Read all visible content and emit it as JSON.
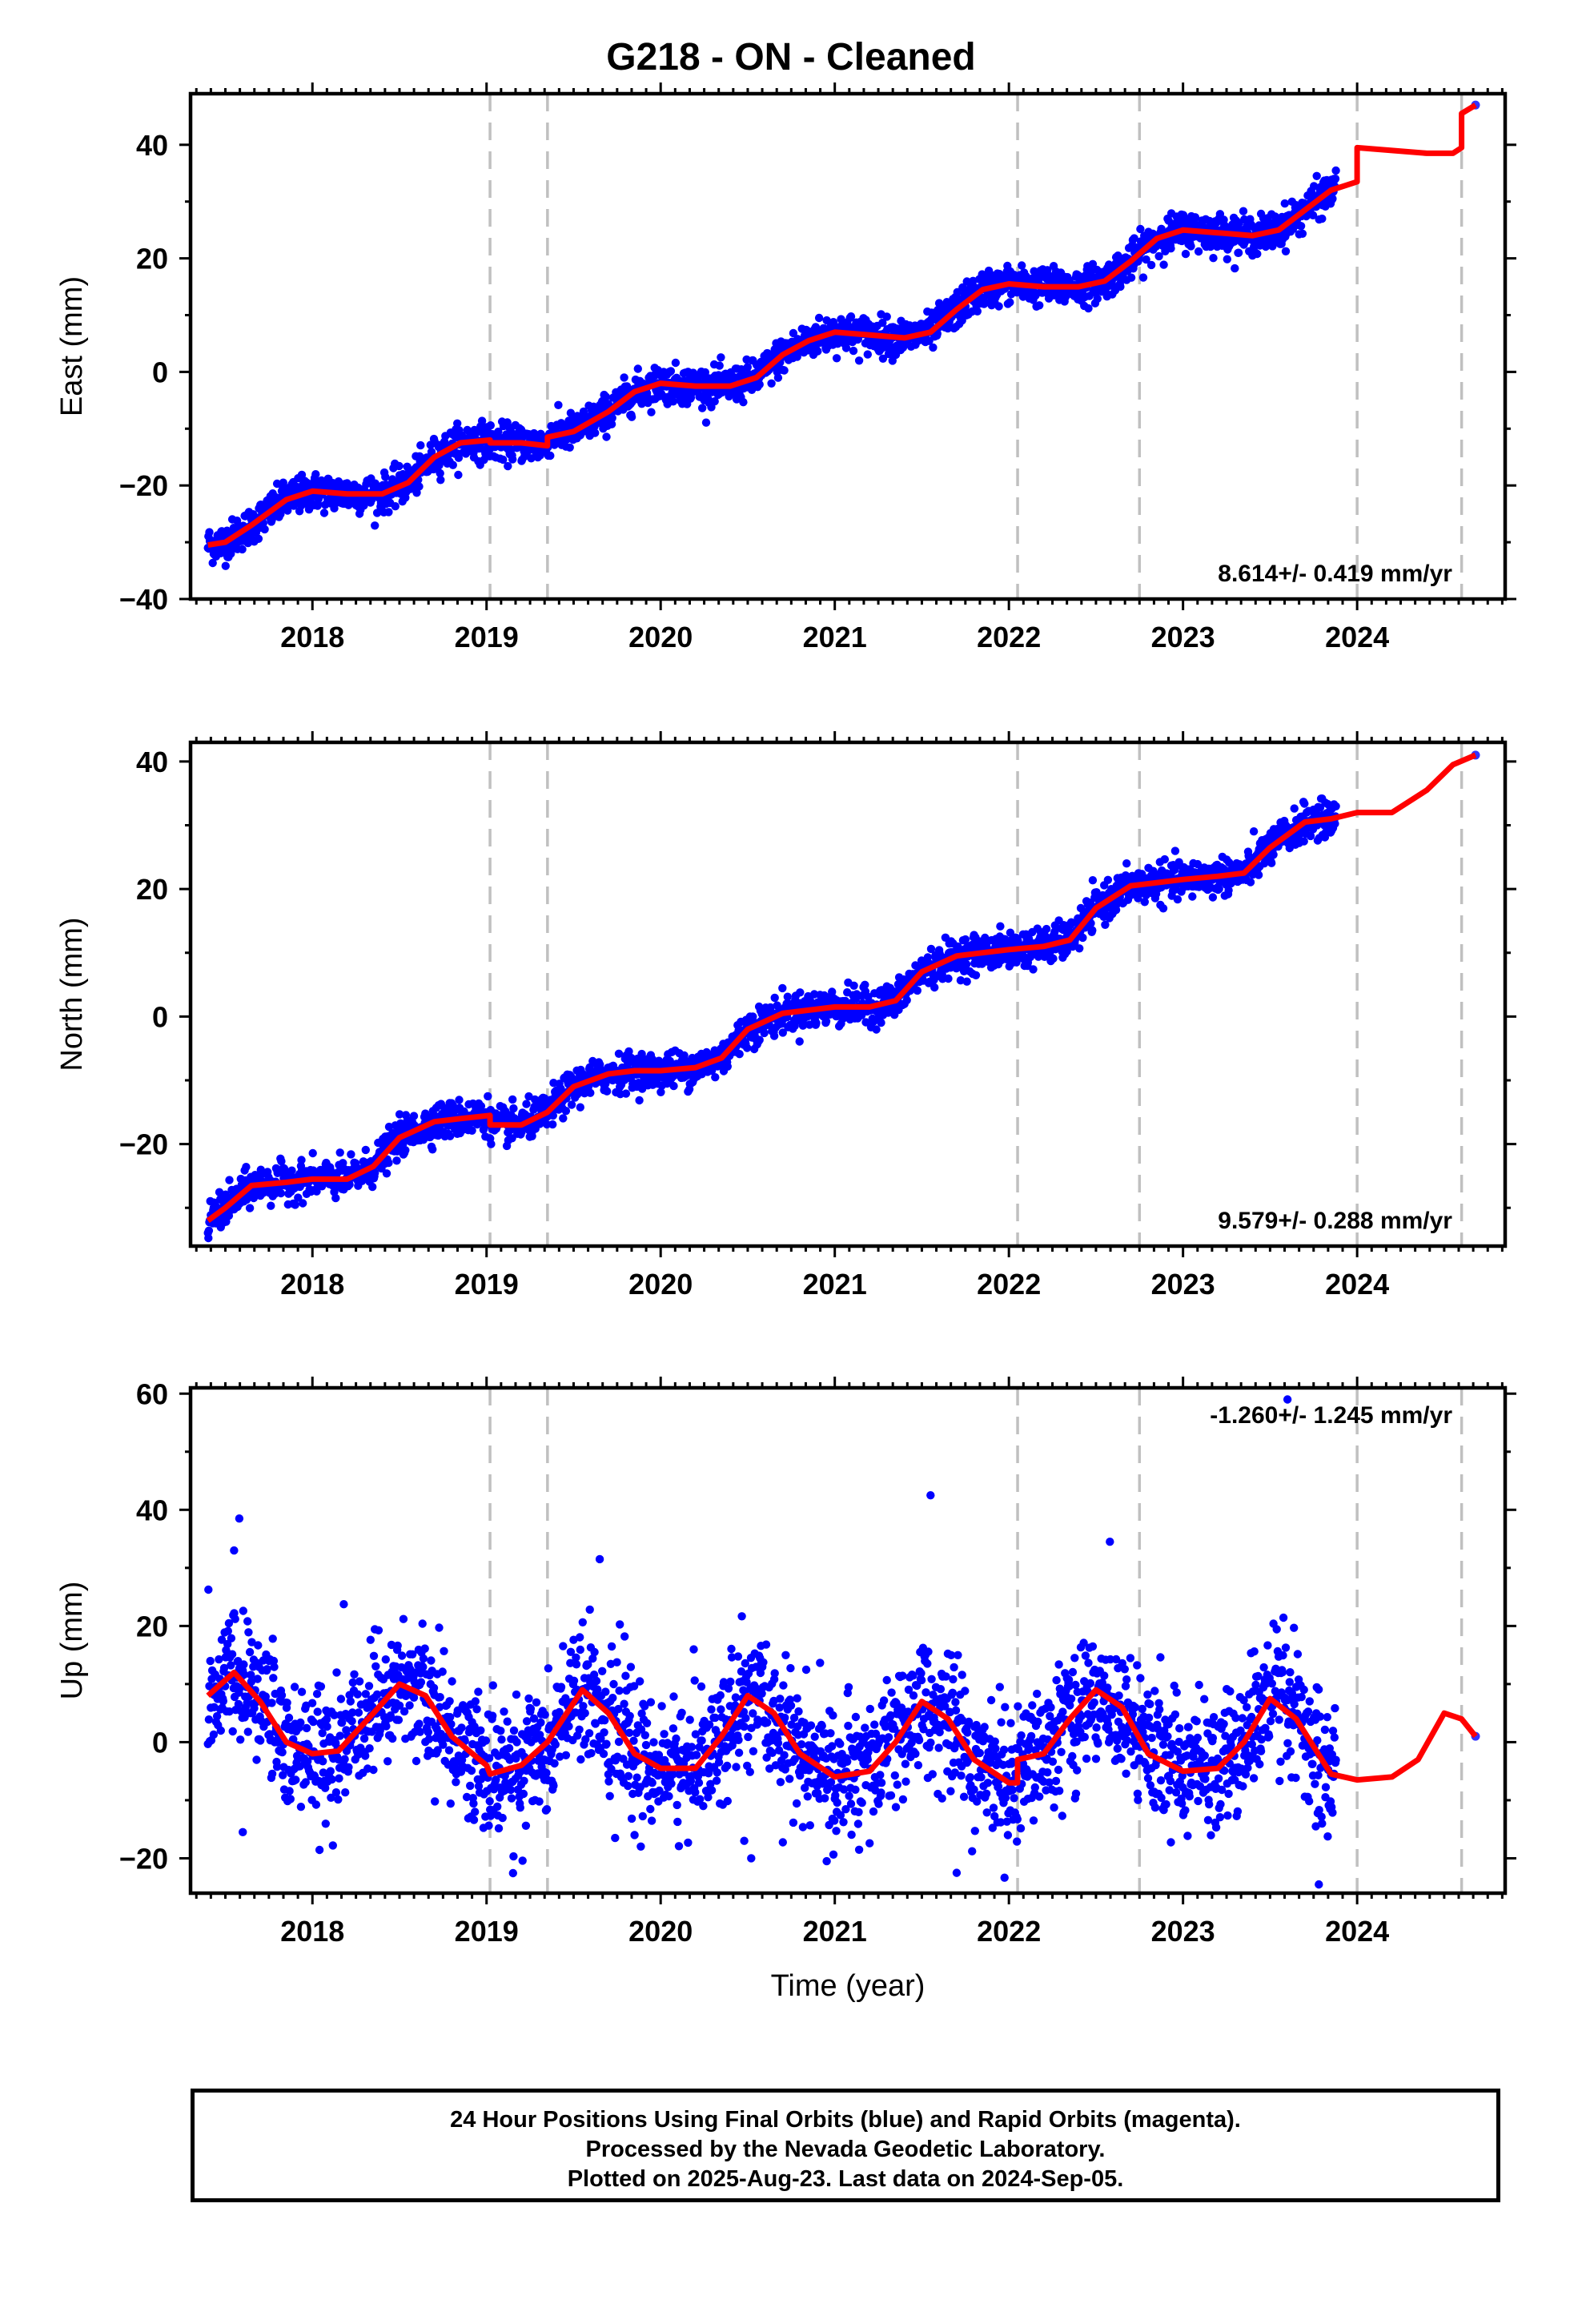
{
  "title": "G218  - ON - Cleaned",
  "footer": {
    "line1": "24 Hour Positions Using Final Orbits (blue) and Rapid Orbits (magenta).",
    "line2": "Processed by the Nevada Geodetic Laboratory.",
    "line3": "Plotted on 2025-Aug-23. Last data on 2024-Sep-05."
  },
  "colors": {
    "data": "#0000ff",
    "model": "#ff0000",
    "grid": "#c0c0c0"
  },
  "chart_data": [
    {
      "type": "scatter",
      "panel": "east",
      "ylabel": "East (mm)",
      "xlabel": "",
      "xlim": [
        2017.3,
        2024.85
      ],
      "ylim": [
        -40,
        49
      ],
      "x_ticks": [
        2018,
        2019,
        2020,
        2021,
        2022,
        2023,
        2024
      ],
      "y_ticks": [
        -40,
        -20,
        0,
        20,
        40
      ],
      "rate_label": "8.614+/- 0.419 mm/yr",
      "rate_label_position": "bottom-right",
      "vertical_lines": [
        2019.02,
        2019.35,
        2022.05,
        2022.75,
        2024.0,
        2024.6
      ],
      "last_point": [
        2024.68,
        47
      ],
      "series": [
        {
          "name": "model",
          "x": [
            2017.4,
            2017.5,
            2017.65,
            2017.85,
            2018.0,
            2018.2,
            2018.4,
            2018.55,
            2018.7,
            2018.85,
            2019.02,
            2019.02,
            2019.2,
            2019.35,
            2019.35,
            2019.5,
            2019.7,
            2019.85,
            2020.0,
            2020.2,
            2020.4,
            2020.55,
            2020.7,
            2020.85,
            2021.0,
            2021.2,
            2021.4,
            2021.55,
            2021.7,
            2021.85,
            2022.0,
            2022.2,
            2022.4,
            2022.55,
            2022.7,
            2022.85,
            2023.0,
            2023.2,
            2023.4,
            2023.55,
            2023.7,
            2023.85,
            2024.0,
            2024.0,
            2024.2,
            2024.4,
            2024.55,
            2024.6,
            2024.6,
            2024.68
          ],
          "y": [
            -30.5,
            -30,
            -27,
            -22.5,
            -21,
            -21.5,
            -21.5,
            -19.5,
            -15,
            -12.5,
            -12,
            -12.5,
            -12.5,
            -13,
            -11.5,
            -10.5,
            -7,
            -3.5,
            -2,
            -2.5,
            -2.5,
            -1,
            3,
            5.5,
            7,
            6.5,
            6,
            7,
            11,
            14.5,
            15.5,
            15,
            15,
            16,
            19.5,
            23.5,
            25,
            24.5,
            24,
            25,
            28.5,
            32,
            33.5,
            39.5,
            39,
            38.5,
            38.5,
            39.5,
            45.5,
            47
          ]
        }
      ]
    },
    {
      "type": "scatter",
      "panel": "north",
      "ylabel": "North (mm)",
      "xlabel": "",
      "xlim": [
        2017.3,
        2024.85
      ],
      "ylim": [
        -36,
        43
      ],
      "x_ticks": [
        2018,
        2019,
        2020,
        2021,
        2022,
        2023,
        2024
      ],
      "y_ticks": [
        -20,
        0,
        20,
        40
      ],
      "rate_label": "9.579+/- 0.288 mm/yr",
      "rate_label_position": "bottom-right",
      "vertical_lines": [
        2019.02,
        2019.35,
        2022.05,
        2022.75,
        2024.0,
        2024.6
      ],
      "last_point": [
        2024.68,
        41
      ],
      "series": [
        {
          "name": "model",
          "x": [
            2017.4,
            2017.5,
            2017.65,
            2017.85,
            2018.0,
            2018.2,
            2018.35,
            2018.5,
            2018.7,
            2018.85,
            2019.02,
            2019.02,
            2019.2,
            2019.35,
            2019.5,
            2019.7,
            2019.85,
            2020.0,
            2020.2,
            2020.35,
            2020.5,
            2020.7,
            2020.85,
            2021.0,
            2021.2,
            2021.35,
            2021.5,
            2021.7,
            2021.85,
            2022.0,
            2022.2,
            2022.35,
            2022.5,
            2022.7,
            2022.85,
            2023.0,
            2023.2,
            2023.35,
            2023.5,
            2023.7,
            2023.85,
            2024.0,
            2024.2,
            2024.4,
            2024.55,
            2024.68
          ],
          "y": [
            -32,
            -30,
            -26.5,
            -26,
            -25.5,
            -25.5,
            -23.5,
            -19,
            -16.5,
            -16,
            -15.5,
            -17,
            -17,
            -15,
            -11,
            -9,
            -8.5,
            -8.5,
            -8,
            -6.5,
            -2,
            0.5,
            1,
            1.5,
            1.5,
            2.5,
            7,
            9.5,
            10,
            10.5,
            11,
            12,
            17,
            20.5,
            21,
            21.5,
            22,
            22.5,
            26.5,
            30.5,
            31,
            32,
            32,
            35.5,
            39.5,
            41
          ]
        }
      ]
    },
    {
      "type": "scatter",
      "panel": "up",
      "ylabel": "Up (mm)",
      "xlabel": "Time (year)",
      "xlim": [
        2017.3,
        2024.85
      ],
      "ylim": [
        -26,
        61
      ],
      "x_ticks": [
        2018,
        2019,
        2020,
        2021,
        2022,
        2023,
        2024
      ],
      "y_ticks": [
        -20,
        0,
        20,
        40,
        60
      ],
      "rate_label": "-1.260+/- 1.245 mm/yr",
      "rate_label_position": "top-right",
      "vertical_lines": [
        2019.02,
        2019.35,
        2022.05,
        2022.75,
        2024.0,
        2024.6
      ],
      "last_point": [
        2024.68,
        1
      ],
      "outliers": [
        [
          2017.58,
          38.5
        ],
        [
          2017.55,
          33
        ],
        [
          2019.65,
          31.5
        ],
        [
          2020.48,
          -17
        ],
        [
          2020.52,
          -20
        ],
        [
          2021.55,
          42.5
        ],
        [
          2021.7,
          -22.5
        ],
        [
          2022.58,
          34.5
        ],
        [
          2023.6,
          59
        ],
        [
          2023.78,
          -24.5
        ],
        [
          2019.85,
          -16
        ],
        [
          2017.6,
          -15.5
        ]
      ],
      "series": [
        {
          "name": "model",
          "x": [
            2017.4,
            2017.55,
            2017.7,
            2017.85,
            2018.0,
            2018.15,
            2018.35,
            2018.5,
            2018.65,
            2018.8,
            2019.0,
            2019.02,
            2019.2,
            2019.35,
            2019.55,
            2019.7,
            2019.85,
            2020.0,
            2020.2,
            2020.35,
            2020.5,
            2020.65,
            2020.8,
            2021.0,
            2021.2,
            2021.35,
            2021.5,
            2021.65,
            2021.8,
            2022.0,
            2022.05,
            2022.05,
            2022.2,
            2022.35,
            2022.5,
            2022.65,
            2022.8,
            2023.0,
            2023.2,
            2023.35,
            2023.5,
            2023.65,
            2023.85,
            2024.0,
            2024.2,
            2024.35,
            2024.5,
            2024.6,
            2024.68
          ],
          "y": [
            8,
            12,
            7,
            0,
            -2,
            -1.5,
            5,
            10,
            8,
            1,
            -4,
            -5.5,
            -4,
            0,
            9,
            5,
            -2,
            -4.5,
            -4.5,
            1,
            8,
            5,
            -2,
            -6,
            -5,
            0,
            7,
            4,
            -3,
            -7,
            -7,
            -3,
            -2,
            4,
            9,
            6,
            -2,
            -5,
            -4.5,
            0,
            7.5,
            4,
            -5.5,
            -6.5,
            -6,
            -3,
            5,
            4,
            1
          ]
        }
      ]
    }
  ]
}
